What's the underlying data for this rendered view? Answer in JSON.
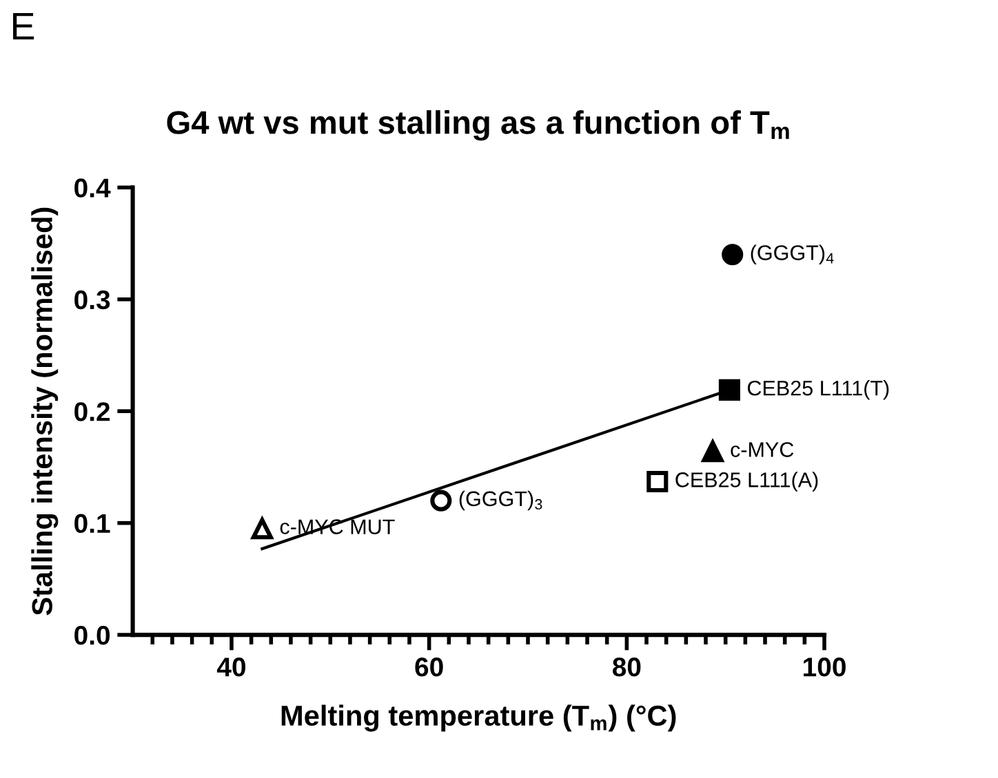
{
  "chart_data": {
    "type": "scatter",
    "title": "G4 wt vs mut stalling as a function of T$_{m}$",
    "xlabel": "Melting temperature (T$_{m}$) (°C)",
    "ylabel": "Stalling intensity (normalised)",
    "annotations": [
      "E"
    ],
    "xlim": [
      30,
      100
    ],
    "ylim": [
      0,
      0.4
    ],
    "xticks": [
      {
        "value": 32,
        "label": null
      },
      {
        "value": 34,
        "label": null
      },
      {
        "value": 36,
        "label": null
      },
      {
        "value": 38,
        "label": null
      },
      40,
      {
        "value": 42,
        "label": null
      },
      {
        "value": 44,
        "label": null
      },
      {
        "value": 46,
        "label": null
      },
      {
        "value": 48,
        "label": null
      },
      {
        "value": 50,
        "label": null
      },
      {
        "value": 52,
        "label": null
      },
      {
        "value": 54,
        "label": null
      },
      {
        "value": 56,
        "label": null
      },
      {
        "value": 58,
        "label": null
      },
      60,
      {
        "value": 62,
        "label": null
      },
      {
        "value": 64,
        "label": null
      },
      {
        "value": 66,
        "label": null
      },
      {
        "value": 68,
        "label": null
      },
      {
        "value": 70,
        "label": null
      },
      {
        "value": 72,
        "label": null
      },
      {
        "value": 74,
        "label": null
      },
      {
        "value": 76,
        "label": null
      },
      {
        "value": 78,
        "label": null
      },
      80,
      {
        "value": 82,
        "label": null
      },
      {
        "value": 84,
        "label": null
      },
      {
        "value": 86,
        "label": null
      },
      {
        "value": 88,
        "label": null
      },
      {
        "value": 90,
        "label": null
      },
      {
        "value": 92,
        "label": null
      },
      {
        "value": 94,
        "label": null
      },
      {
        "value": 96,
        "label": null
      },
      {
        "value": 98,
        "label": null
      },
      100
    ],
    "yticks": [
      {
        "value": 0,
        "label": "0.0"
      },
      0.1,
      0.2,
      0.3,
      0.4
    ],
    "series": [
      {
        "name": "(GGGT)$_{4}$",
        "color": "#000000",
        "marker": "circle",
        "x": [
          90.7
        ],
        "values": [
          0.34
        ]
      },
      {
        "name": "CEB25 L111(T)",
        "color": "#000000",
        "marker": "square",
        "x": [
          90.4
        ],
        "values": [
          0.219
        ]
      },
      {
        "name": "c-MYC",
        "color": "#000000",
        "marker": "triangle",
        "x": [
          88.7
        ],
        "values": [
          0.164
        ]
      },
      {
        "name": "CEB25 L111(A)",
        "color": "#000000",
        "colors": [
          "#ffffff"
        ],
        "marker": "square",
        "x": [
          83.1
        ],
        "values": [
          0.137
        ]
      },
      {
        "name": "(GGGT)$_{3}$",
        "color": "#000000",
        "colors": [
          "#ffffff"
        ],
        "marker": "circle",
        "x": [
          61.2
        ],
        "values": [
          0.12
        ]
      },
      {
        "name": "c-MYC MUT",
        "color": "#000000",
        "colors": [
          "#ffffff"
        ],
        "marker": "triangle",
        "x": [
          43.1
        ],
        "values": [
          0.095
        ]
      },
      {
        "type": "line",
        "color": "#000000",
        "marker": "none",
        "line_style": "solid",
        "x": [
          43.1,
          90.4
        ],
        "values": [
          0.077,
          0.219
        ]
      }
    ]
  }
}
